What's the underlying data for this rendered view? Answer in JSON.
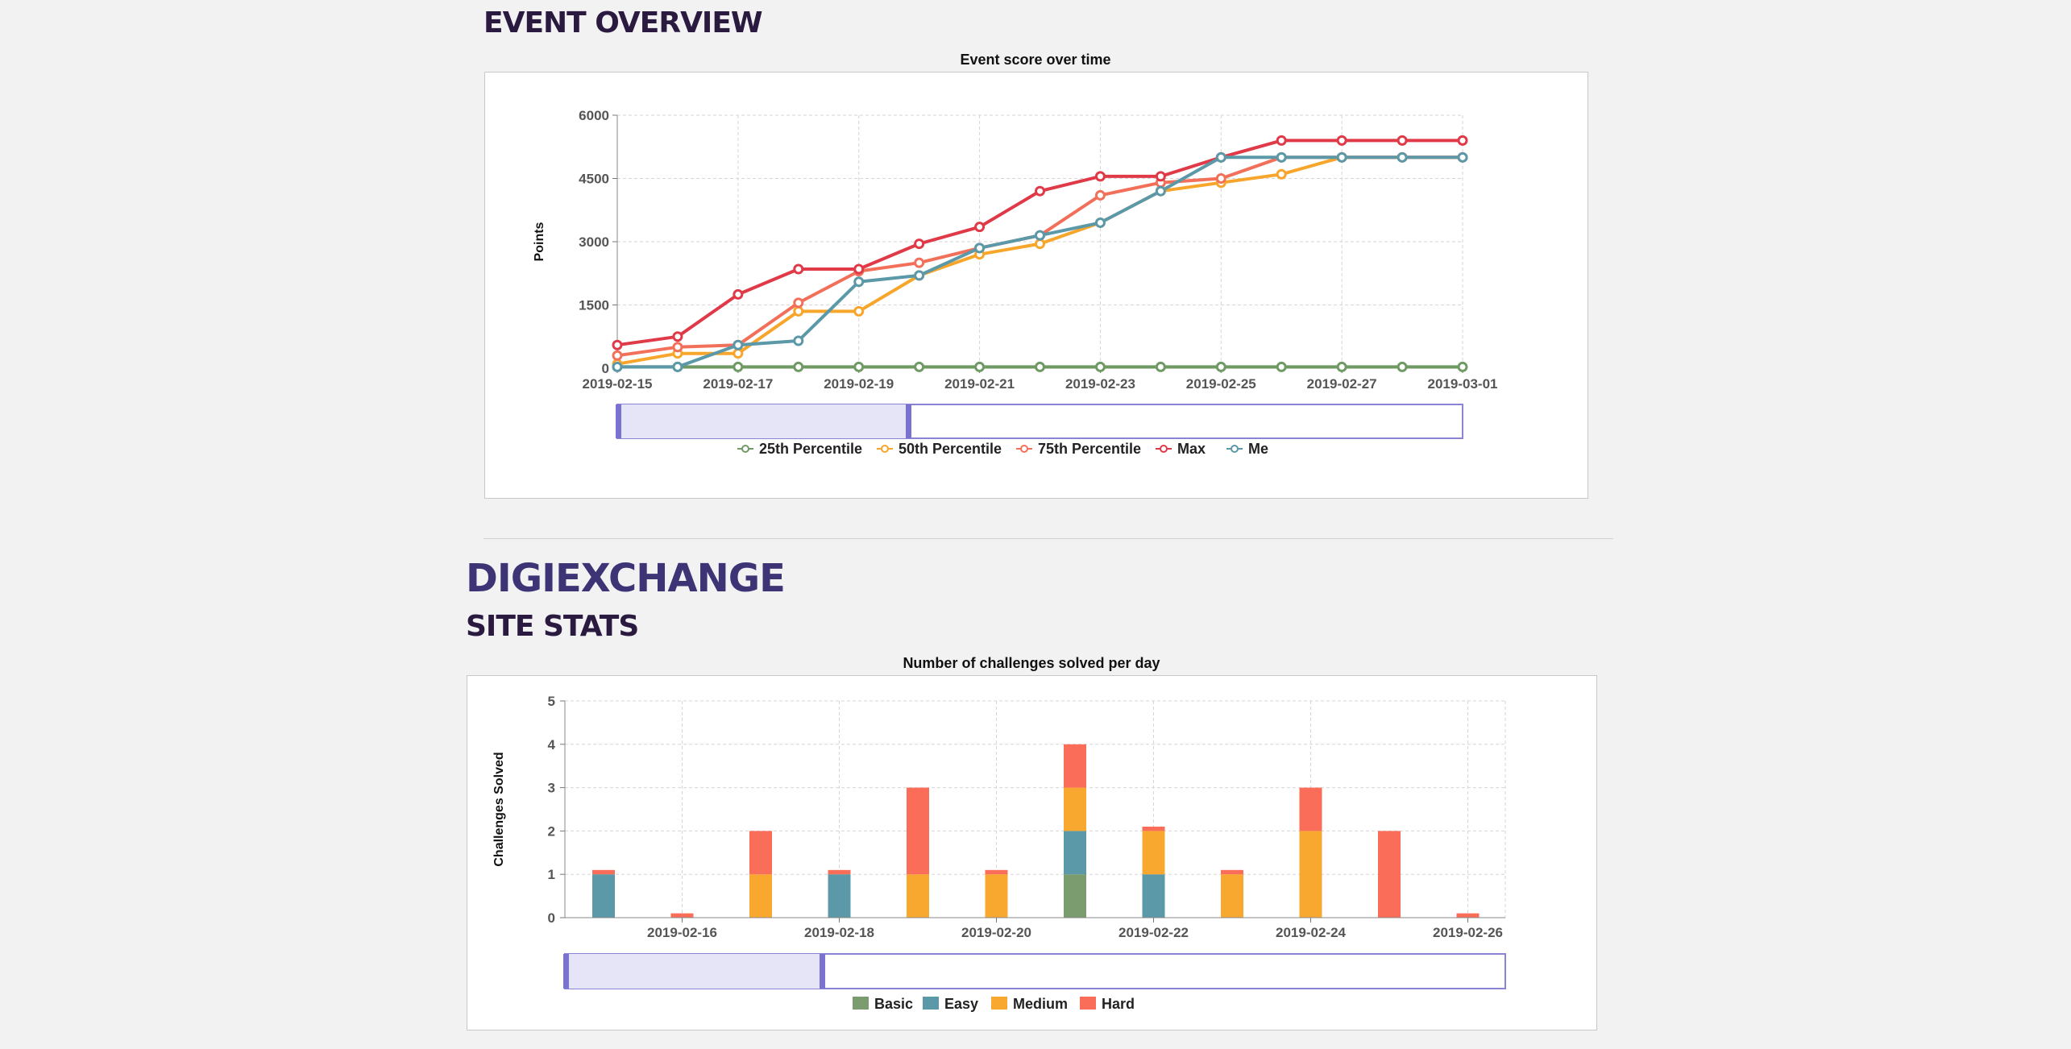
{
  "event_overview": {
    "heading": "EVENT OVERVIEW",
    "chart_title": "Event score over time"
  },
  "digiexchange": {
    "heading": "DIGIEXCHANGE",
    "subheading": "SITE STATS",
    "chart_title": "Number of challenges solved per day"
  },
  "chart_data": [
    {
      "type": "line",
      "title": "Event score over time",
      "xlabel": "",
      "ylabel": "Points",
      "x": [
        "2019-02-15",
        "2019-02-16",
        "2019-02-17",
        "2019-02-18",
        "2019-02-19",
        "2019-02-20",
        "2019-02-21",
        "2019-02-22",
        "2019-02-23",
        "2019-02-24",
        "2019-02-25",
        "2019-02-26",
        "2019-02-27",
        "2019-02-28",
        "2019-03-01"
      ],
      "x_tick_labels": [
        "2019-02-15",
        "2019-02-17",
        "2019-02-19",
        "2019-02-21",
        "2019-02-23",
        "2019-02-25",
        "2019-02-27",
        "2019-03-01"
      ],
      "y_ticks": [
        0,
        1500,
        3000,
        4500,
        6000
      ],
      "ylim": [
        0,
        6000
      ],
      "grid": true,
      "legend_position": "bottom",
      "series": [
        {
          "name": "25th Percentile",
          "color": "#6f9a64",
          "values": [
            30,
            30,
            30,
            30,
            30,
            30,
            30,
            30,
            30,
            30,
            30,
            30,
            30,
            30,
            30
          ]
        },
        {
          "name": "50th Percentile",
          "color": "#f7a62b",
          "values": [
            100,
            350,
            350,
            1350,
            1350,
            2200,
            2700,
            2950,
            3450,
            4200,
            4400,
            4600,
            5000,
            5000,
            5000
          ]
        },
        {
          "name": "75th Percentile",
          "color": "#f2705a",
          "values": [
            300,
            500,
            550,
            1550,
            2300,
            2500,
            2850,
            3150,
            4100,
            4400,
            4500,
            5000,
            5000,
            5000,
            5000
          ]
        },
        {
          "name": "Max",
          "color": "#e03a48",
          "values": [
            550,
            750,
            1750,
            2350,
            2350,
            2950,
            3350,
            4200,
            4550,
            4550,
            5000,
            5400,
            5400,
            5400,
            5400
          ]
        },
        {
          "name": "Me",
          "color": "#5b99a8",
          "values": [
            30,
            30,
            550,
            650,
            2050,
            2200,
            2850,
            3150,
            3450,
            4200,
            5000,
            5000,
            5000,
            5000,
            5000
          ]
        }
      ]
    },
    {
      "type": "bar",
      "stacked": true,
      "title": "Number of challenges solved per day",
      "xlabel": "",
      "ylabel": "Challenges Solved",
      "x": [
        "2019-02-15",
        "2019-02-16",
        "2019-02-17",
        "2019-02-18",
        "2019-02-19",
        "2019-02-20",
        "2019-02-21",
        "2019-02-22",
        "2019-02-23",
        "2019-02-24",
        "2019-02-25",
        "2019-02-26"
      ],
      "x_tick_labels": [
        "2019-02-16",
        "2019-02-18",
        "2019-02-20",
        "2019-02-22",
        "2019-02-24",
        "2019-02-26"
      ],
      "y_ticks": [
        0,
        1,
        2,
        3,
        4,
        5
      ],
      "ylim": [
        0,
        5
      ],
      "grid": true,
      "legend_position": "bottom",
      "series": [
        {
          "name": "Basic",
          "color": "#7a9c6f",
          "values": [
            0,
            0,
            0,
            0,
            0,
            0,
            1,
            0,
            0,
            0,
            0,
            0
          ]
        },
        {
          "name": "Easy",
          "color": "#5b99a8",
          "values": [
            1,
            0,
            0,
            1,
            0,
            0,
            1,
            1,
            0,
            0,
            0,
            0
          ]
        },
        {
          "name": "Medium",
          "color": "#f9a82f",
          "values": [
            0,
            0,
            1,
            0,
            1,
            1,
            1,
            1,
            1,
            2,
            0,
            0
          ]
        },
        {
          "name": "Hard",
          "color": "#fa6e59",
          "values": [
            0.1,
            0.1,
            1,
            0.1,
            2,
            0.1,
            1,
            0.1,
            0.1,
            1,
            2,
            0.1
          ]
        }
      ]
    }
  ]
}
